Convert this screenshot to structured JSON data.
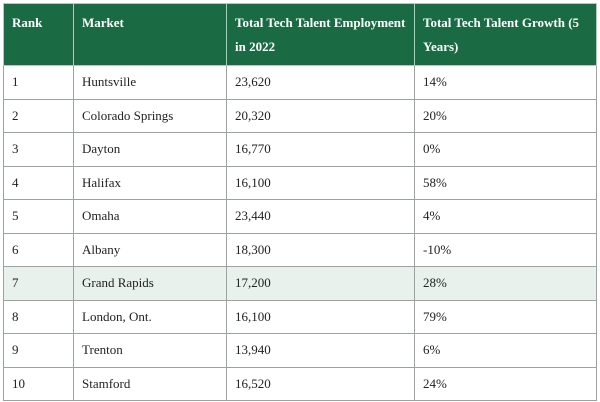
{
  "table": {
    "headers": [
      "Rank",
      "Market",
      "Total Tech Talent Employment in 2022",
      "Total Tech Talent Growth (5 Years)"
    ],
    "highlight_row_index": 6,
    "highlight_color": "#e8f1ec",
    "header_color": "#1a6b44",
    "rows": [
      [
        "1",
        "Huntsville",
        "23,620",
        "14%"
      ],
      [
        "2",
        "Colorado Springs",
        "20,320",
        "20%"
      ],
      [
        "3",
        "Dayton",
        "16,770",
        "0%"
      ],
      [
        "4",
        "Halifax",
        "16,100",
        "58%"
      ],
      [
        "5",
        "Omaha",
        "23,440",
        "4%"
      ],
      [
        "6",
        "Albany",
        "18,300",
        "-10%"
      ],
      [
        "7",
        "Grand Rapids",
        "17,200",
        "28%"
      ],
      [
        "8",
        "London, Ont.",
        "16,100",
        "79%"
      ],
      [
        "9",
        "Trenton",
        "13,940",
        "6%"
      ],
      [
        "10",
        "Stamford",
        "16,520",
        "24%"
      ]
    ]
  }
}
